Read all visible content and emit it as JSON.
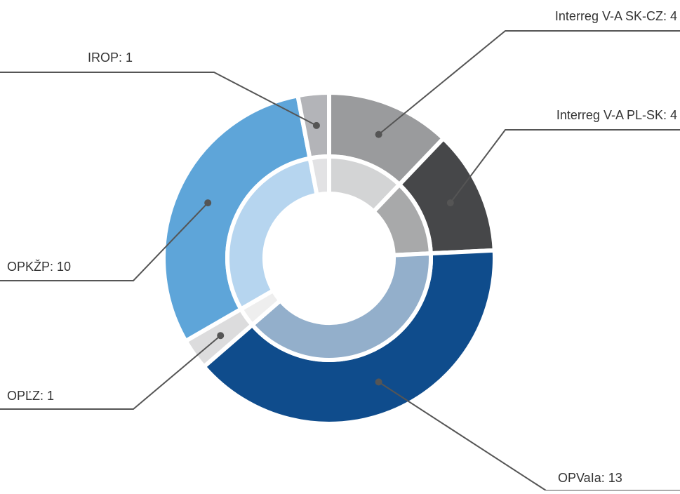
{
  "chart_data": {
    "type": "pie",
    "donut": true,
    "values": [
      4,
      4,
      13,
      1,
      10,
      1
    ],
    "value_labels": [
      "Interreg V-A SK-CZ: 4",
      "Interreg V-A PL-SK: 4",
      "OPVaIa: 13",
      "OPĽZ: 1",
      "OPKŽP: 10",
      "IROP: 1"
    ],
    "colors": [
      "#9a9b9d",
      "#464749",
      "#0f4c8c",
      "#dcdcdd",
      "#5ea5d9",
      "#b3b4b8"
    ],
    "inner_colors": [
      "#d3d4d5",
      "#a8a9aa",
      "#93afcb",
      "#eeeeee",
      "#b6d5ef",
      "#e2e2e4"
    ]
  }
}
